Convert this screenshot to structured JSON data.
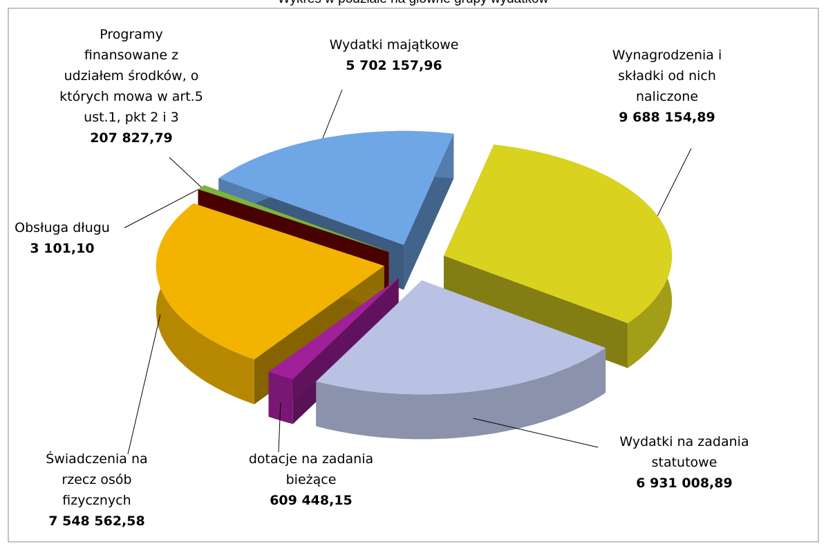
{
  "chart_data": {
    "type": "pie3d",
    "title": "Wykres w podziale na główne grupy wydatków",
    "categories": [
      "Wynagrodzenia i składki od nich naliczone",
      "Wydatki na zadania statutowe",
      "dotacje na zadania bieżące",
      "Świadczenia na rzecz osób fizycznych",
      "Obsługa długu",
      "Programy finansowane z udziałem środków, o których mowa w art.5 ust.1, pkt 2 i 3",
      "Wydatki majątkowe"
    ],
    "values": [
      9688154.89,
      6931008.89,
      609448.15,
      7548562.58,
      3101.1,
      207827.79,
      5702157.96
    ],
    "value_labels": [
      "9 688 154,89",
      "6 931 008,89",
      "609 448,15",
      "7 548 562,58",
      "3 101,10",
      "207 827,79",
      "5 702 157,96"
    ],
    "colors": [
      "#d9d21f",
      "#b9c2e4",
      "#a0209a",
      "#f2b400",
      "#7a0000",
      "#7fb33c",
      "#6fa6e6"
    ]
  }
}
